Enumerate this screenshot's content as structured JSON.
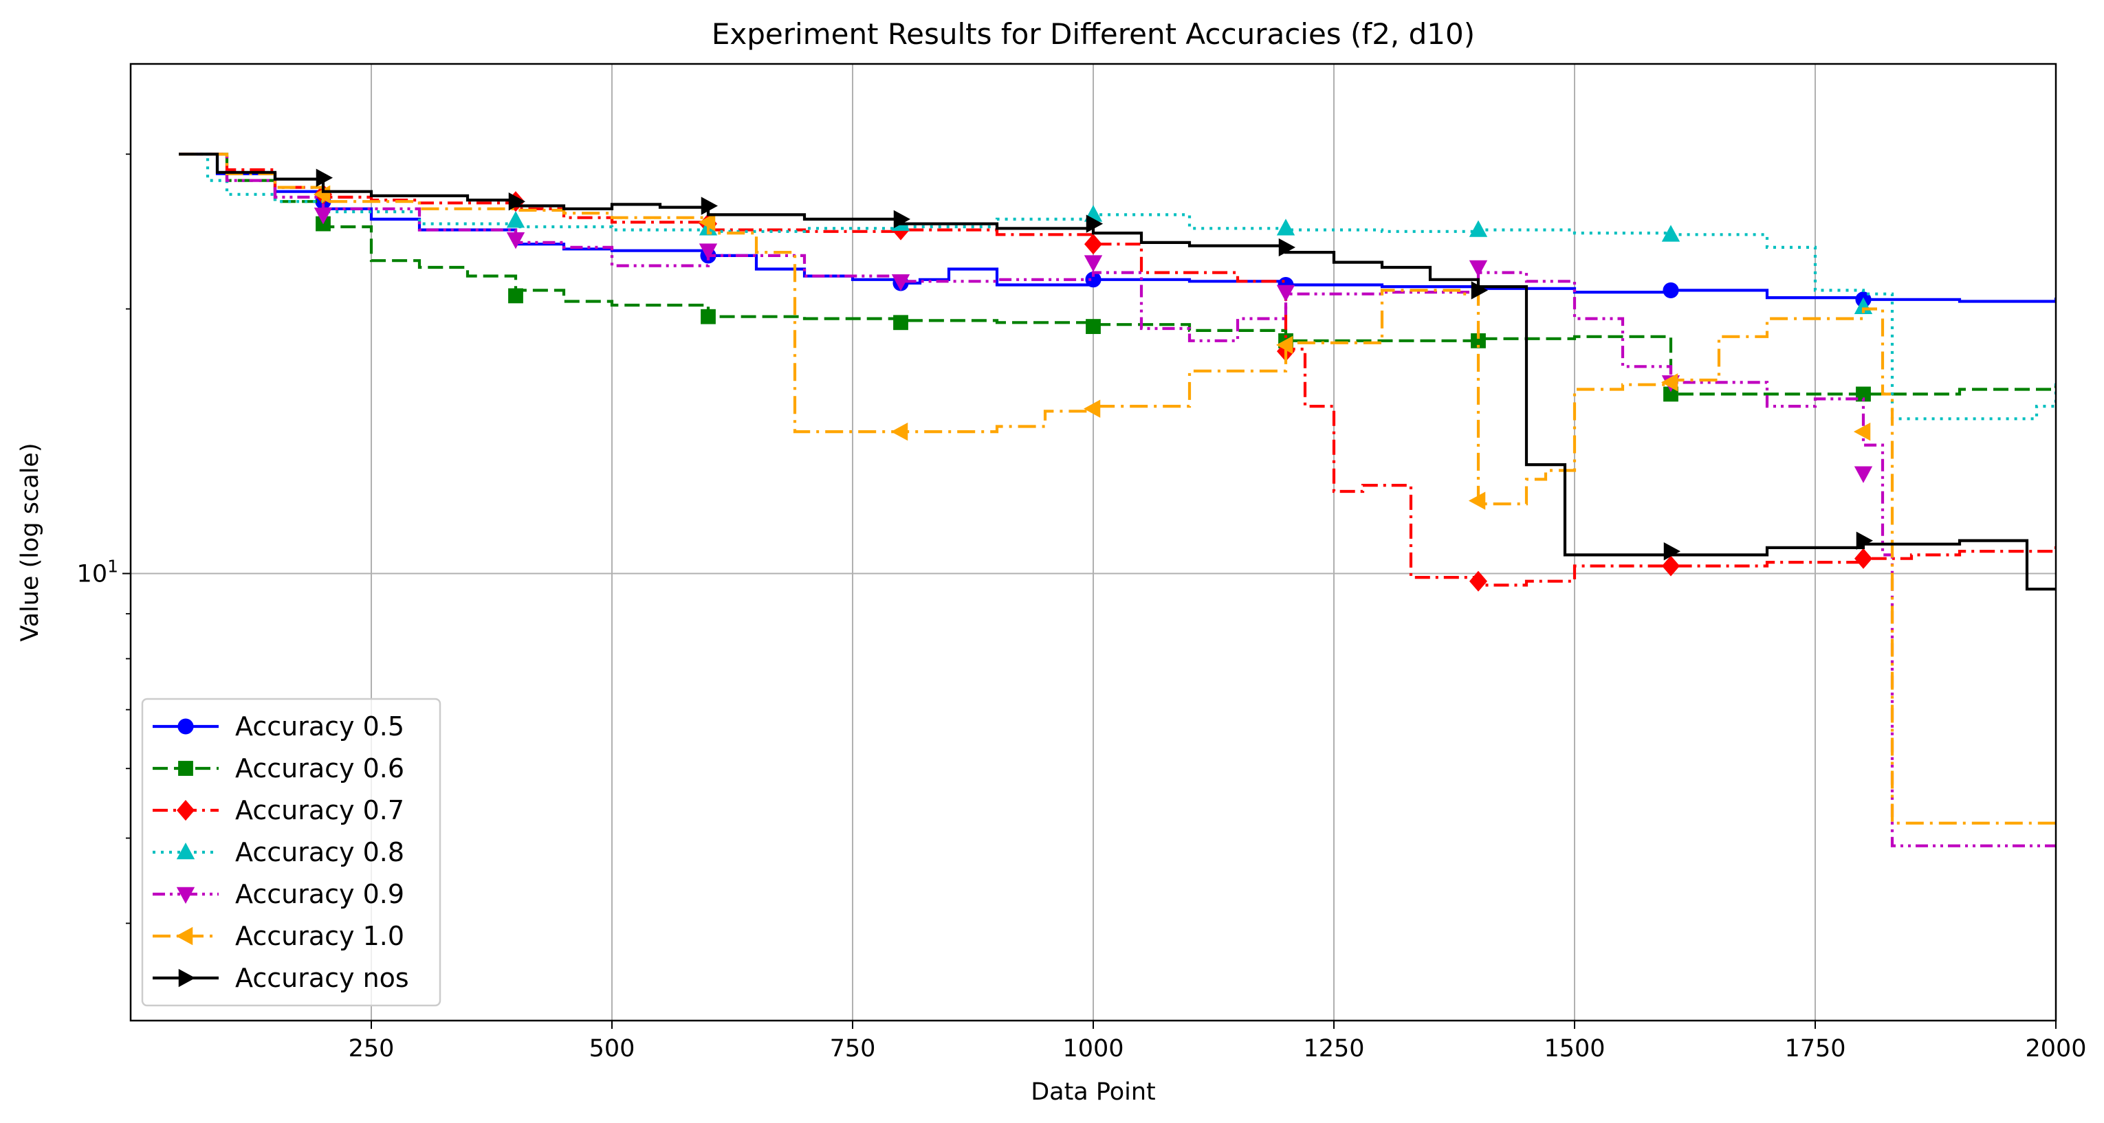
{
  "chart_data": {
    "type": "line",
    "title": "Experiment Results for Different Accuracies (f2, d10)",
    "xlabel": "Data Point",
    "ylabel": "Value (log scale)",
    "xlim": [
      0,
      2000
    ],
    "ylim": [
      3.1,
      38.0
    ],
    "y_scale": "log",
    "grid": true,
    "legend_position": "lower-left",
    "x_ticks": [
      250,
      500,
      750,
      1000,
      1250,
      1500,
      1750,
      2000
    ],
    "y_major_ticks": [
      {
        "value": 10,
        "base": "10",
        "exponent": "1"
      }
    ],
    "y_minor_ticks": [
      4,
      5,
      6,
      7,
      8,
      9,
      20,
      30
    ],
    "series": [
      {
        "name": "Accuracy 0.5",
        "color": "#0000ff",
        "dash": "solid",
        "marker": "circle",
        "x": [
          50,
          90,
          150,
          200,
          250,
          300,
          400,
          450,
          500,
          600,
          650,
          700,
          750,
          800,
          820,
          850,
          900,
          1000,
          1100,
          1200,
          1300,
          1400,
          1500,
          1600,
          1700,
          1800,
          1900,
          2000
        ],
        "y": [
          30,
          28.5,
          27.2,
          26,
          25.3,
          24.6,
          23.7,
          23.4,
          23.3,
          23.0,
          22.2,
          21.8,
          21.6,
          21.4,
          21.6,
          22.2,
          21.3,
          21.6,
          21.5,
          21.3,
          21.2,
          21.1,
          20.9,
          21.0,
          20.6,
          20.5,
          20.4,
          20.6
        ],
        "markers": [
          [
            200,
            26.5
          ],
          [
            600,
            23.0
          ],
          [
            800,
            21.4
          ],
          [
            1000,
            21.6
          ],
          [
            1200,
            21.3
          ],
          [
            1600,
            21.0
          ],
          [
            1800,
            20.5
          ]
        ]
      },
      {
        "name": "Accuracy 0.6",
        "color": "#008000",
        "dash": "dashed",
        "marker": "square",
        "x": [
          50,
          100,
          150,
          200,
          250,
          300,
          350,
          400,
          450,
          500,
          600,
          700,
          800,
          900,
          1000,
          1100,
          1200,
          1300,
          1400,
          1500,
          1600,
          1700,
          1800,
          1900,
          2000
        ],
        "y": [
          30,
          28.0,
          26.5,
          24.8,
          22.7,
          22.3,
          21.8,
          21.0,
          20.4,
          20.2,
          19.6,
          19.5,
          19.4,
          19.3,
          19.2,
          18.9,
          18.4,
          18.4,
          18.5,
          18.6,
          16.0,
          16.0,
          16.0,
          16.2,
          16.4
        ],
        "markers": [
          [
            200,
            25.0
          ],
          [
            400,
            20.7
          ],
          [
            600,
            19.6
          ],
          [
            800,
            19.3
          ],
          [
            1000,
            19.1
          ],
          [
            1200,
            18.4
          ],
          [
            1400,
            18.4
          ],
          [
            1600,
            16.0
          ],
          [
            1800,
            16.0
          ]
        ]
      },
      {
        "name": "Accuracy 0.7",
        "color": "#ff0000",
        "dash": "dashdot",
        "marker": "diamond",
        "x": [
          50,
          100,
          150,
          200,
          250,
          300,
          400,
          450,
          500,
          600,
          700,
          800,
          900,
          1000,
          1050,
          1100,
          1150,
          1200,
          1220,
          1250,
          1280,
          1330,
          1400,
          1450,
          1500,
          1600,
          1700,
          1800,
          1850,
          1900,
          2000
        ],
        "y": [
          30,
          28.8,
          27.5,
          26.8,
          26.6,
          26.4,
          26.0,
          25.4,
          25.1,
          24.6,
          24.5,
          24.6,
          24.3,
          23.7,
          22.0,
          22.0,
          21.5,
          18.0,
          15.5,
          12.4,
          12.6,
          9.9,
          9.7,
          9.8,
          10.2,
          10.2,
          10.3,
          10.4,
          10.5,
          10.6,
          10.8
        ],
        "markers": [
          [
            200,
            27.0
          ],
          [
            400,
            26.5
          ],
          [
            600,
            25.0
          ],
          [
            800,
            24.6
          ],
          [
            1000,
            23.7
          ],
          [
            1200,
            17.9
          ],
          [
            1400,
            9.8
          ],
          [
            1600,
            10.2
          ],
          [
            1800,
            10.4
          ]
        ]
      },
      {
        "name": "Accuracy 0.8",
        "color": "#00bfbf",
        "dash": "dotted",
        "marker": "triangle-up",
        "x": [
          50,
          80,
          100,
          150,
          200,
          300,
          400,
          500,
          600,
          700,
          800,
          900,
          1000,
          1100,
          1200,
          1300,
          1400,
          1500,
          1600,
          1700,
          1750,
          1800,
          1830,
          1950,
          1980,
          2000
        ],
        "y": [
          30,
          28.0,
          27.0,
          26.5,
          25.8,
          25.0,
          24.8,
          24.6,
          24.5,
          24.7,
          24.8,
          25.3,
          25.6,
          24.7,
          24.6,
          24.5,
          24.6,
          24.4,
          24.3,
          23.5,
          21.0,
          20.8,
          15.0,
          15.0,
          15.5,
          16.5
        ],
        "markers": [
          [
            400,
            25.2
          ],
          [
            600,
            24.7
          ],
          [
            800,
            25.0
          ],
          [
            1000,
            25.6
          ],
          [
            1200,
            24.7
          ],
          [
            1400,
            24.6
          ],
          [
            1600,
            24.3
          ],
          [
            1800,
            20.1
          ]
        ]
      },
      {
        "name": "Accuracy 0.9",
        "color": "#bf00bf",
        "dash": "dashdotdot",
        "marker": "triangle-down",
        "x": [
          50,
          100,
          150,
          200,
          300,
          400,
          450,
          500,
          600,
          700,
          800,
          900,
          1000,
          1050,
          1100,
          1150,
          1200,
          1300,
          1400,
          1450,
          1500,
          1550,
          1600,
          1700,
          1750,
          1800,
          1820,
          1830,
          2000
        ],
        "y": [
          30,
          28.0,
          26.8,
          26.0,
          24.6,
          23.8,
          23.5,
          22.4,
          23.0,
          21.8,
          21.5,
          21.6,
          22.0,
          19.0,
          18.4,
          19.5,
          20.8,
          20.9,
          22.0,
          21.5,
          19.5,
          17.2,
          16.5,
          15.5,
          15.8,
          14.0,
          10.5,
          4.9,
          4.9
        ],
        "markers": [
          [
            200,
            25.6
          ],
          [
            400,
            24.0
          ],
          [
            600,
            23.3
          ],
          [
            800,
            21.5
          ],
          [
            1000,
            22.6
          ],
          [
            1200,
            20.9
          ],
          [
            1400,
            22.3
          ],
          [
            1600,
            16.5
          ],
          [
            1800,
            13.0
          ]
        ]
      },
      {
        "name": "Accuracy 1.0",
        "color": "#ffa500",
        "dash": "dashdotlong",
        "marker": "triangle-left",
        "x": [
          50,
          100,
          150,
          200,
          300,
          400,
          450,
          500,
          600,
          650,
          690,
          800,
          900,
          950,
          1000,
          1100,
          1200,
          1300,
          1380,
          1400,
          1450,
          1470,
          1500,
          1550,
          1600,
          1650,
          1700,
          1800,
          1820,
          1830,
          2000
        ],
        "y": [
          30,
          28.5,
          27.5,
          26.5,
          26.0,
          25.9,
          25.7,
          25.4,
          24.4,
          23.2,
          14.5,
          14.5,
          14.7,
          15.3,
          15.5,
          17.0,
          18.3,
          21.0,
          20.8,
          12.0,
          12.8,
          13.1,
          16.2,
          16.4,
          16.6,
          18.6,
          19.5,
          20.0,
          16.0,
          5.2,
          5.2
        ],
        "markers": [
          [
            200,
            27.0
          ],
          [
            600,
            25.1
          ],
          [
            800,
            14.5
          ],
          [
            1000,
            15.4
          ],
          [
            1200,
            18.2
          ],
          [
            1400,
            12.1
          ],
          [
            1600,
            16.5
          ],
          [
            1800,
            14.5
          ]
        ]
      },
      {
        "name": "Accuracy nos",
        "color": "#000000",
        "dash": "solid",
        "marker": "triangle-right",
        "x": [
          50,
          90,
          150,
          200,
          250,
          350,
          400,
          450,
          500,
          550,
          600,
          700,
          800,
          900,
          1000,
          1050,
          1100,
          1200,
          1250,
          1300,
          1350,
          1400,
          1450,
          1490,
          1600,
          1700,
          1800,
          1900,
          1970,
          2000
        ],
        "y": [
          30,
          28.6,
          28.1,
          27.2,
          26.9,
          26.6,
          26.2,
          26.0,
          26.3,
          26.1,
          25.6,
          25.3,
          25.0,
          24.7,
          24.4,
          23.8,
          23.6,
          23.2,
          22.6,
          22.3,
          21.6,
          21.2,
          13.3,
          10.5,
          10.5,
          10.7,
          10.8,
          10.9,
          9.6,
          9.6
        ],
        "markers": [
          [
            200,
            28.2
          ],
          [
            400,
            26.5
          ],
          [
            600,
            26.2
          ],
          [
            800,
            25.3
          ],
          [
            1000,
            25.0
          ],
          [
            1200,
            23.5
          ],
          [
            1400,
            21.0
          ],
          [
            1600,
            10.6
          ],
          [
            1800,
            10.9
          ]
        ]
      }
    ]
  }
}
